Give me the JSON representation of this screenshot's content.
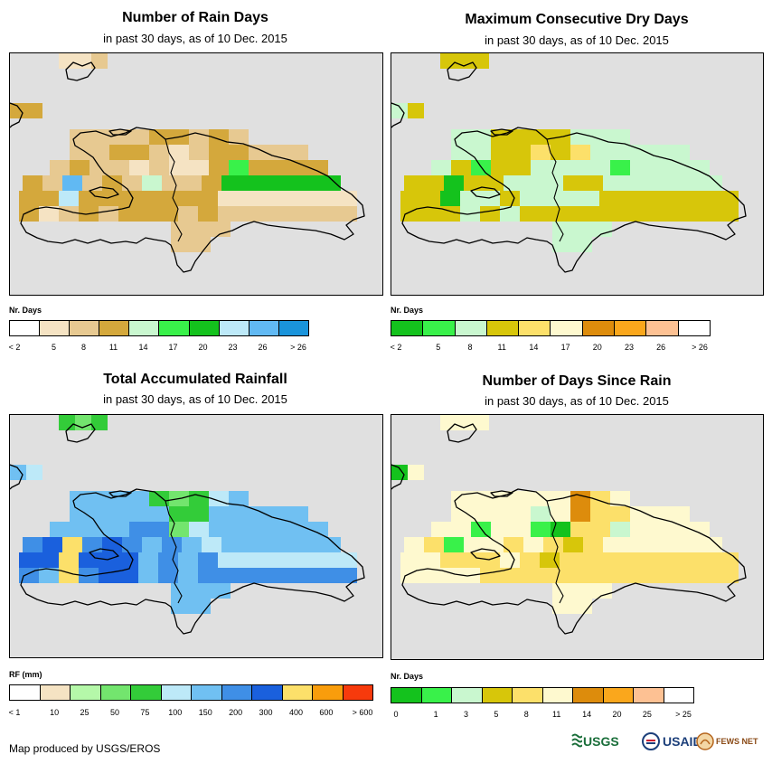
{
  "panels": [
    {
      "title": "Number of Rain Days",
      "subtitle": "in past 30 days, as of 10 Dec. 2015",
      "legend": {
        "title": "Nr. Days",
        "labels": [
          "< 2",
          "5",
          "8",
          "11",
          "14",
          "17",
          "20",
          "23",
          "26",
          "> 26"
        ],
        "colors": [
          "#ffffff",
          "#f5e3c3",
          "#e7c991",
          "#d4a83c",
          "#c9f7cf",
          "#39f14a",
          "#14c21d",
          "#bde9f8",
          "#61b9f3",
          "#1a94db"
        ]
      },
      "grid": {
        "base": "#e7c991",
        "cells": [
          [
            0,
            0,
            "#f5e3c3"
          ],
          [
            1,
            0,
            "#f5e3c3"
          ],
          [
            2,
            0,
            "#e7c991"
          ],
          [
            3,
            0,
            "#f5e3c3"
          ],
          [
            0,
            1,
            "#d4a83c"
          ],
          [
            1,
            1,
            "#d4a83c"
          ],
          [
            2,
            1,
            "#d4a83c"
          ],
          [
            4,
            3,
            "#d4a83c"
          ],
          [
            5,
            3,
            "#d4a83c"
          ],
          [
            6,
            3,
            "#e7c991"
          ],
          [
            7,
            3,
            "#d4a83c"
          ],
          [
            2,
            4,
            "#d4a83c"
          ],
          [
            3,
            4,
            "#d4a83c"
          ],
          [
            5,
            4,
            "#f5e3c3"
          ],
          [
            7,
            4,
            "#d4a83c"
          ],
          [
            8,
            4,
            "#d4a83c"
          ],
          [
            1,
            5,
            "#d4a83c"
          ],
          [
            4,
            5,
            "#f5e3c3"
          ],
          [
            6,
            5,
            "#f5e3c3"
          ],
          [
            7,
            5,
            "#f5e3c3"
          ],
          [
            8,
            5,
            "#d4a83c"
          ],
          [
            9,
            5,
            "#39f14a"
          ],
          [
            10,
            5,
            "#d4a83c"
          ],
          [
            0,
            6,
            "#d4a83c"
          ],
          [
            2,
            6,
            "#61b9f3"
          ],
          [
            4,
            6,
            "#d4a83c"
          ],
          [
            6,
            6,
            "#c9f7cf"
          ],
          [
            8,
            6,
            "#e7c991"
          ],
          [
            9,
            6,
            "#d4a83c"
          ],
          [
            10,
            6,
            "#14c21d"
          ],
          [
            0,
            7,
            "#d4a83c"
          ],
          [
            1,
            7,
            "#d4a83c"
          ],
          [
            2,
            7,
            "#bde9f8"
          ],
          [
            3,
            7,
            "#d4a83c"
          ],
          [
            4,
            7,
            "#d4a83c"
          ],
          [
            5,
            7,
            "#d4a83c"
          ],
          [
            6,
            7,
            "#d4a83c"
          ],
          [
            7,
            7,
            "#d4a83c"
          ],
          [
            8,
            7,
            "#d4a83c"
          ],
          [
            9,
            7,
            "#d4a83c"
          ],
          [
            10,
            7,
            "#f5e3c3"
          ],
          [
            0,
            8,
            "#d4a83c"
          ],
          [
            1,
            8,
            "#f5e3c3"
          ],
          [
            3,
            8,
            "#d4a83c"
          ],
          [
            5,
            8,
            "#d4a83c"
          ],
          [
            6,
            8,
            "#d4a83c"
          ],
          [
            7,
            8,
            "#d4a83c"
          ],
          [
            9,
            8,
            "#d4a83c"
          ],
          [
            5,
            9,
            "#f5e3c3"
          ],
          [
            6,
            9,
            "#f5e3c3"
          ],
          [
            5,
            10,
            "#e7c991"
          ]
        ]
      }
    },
    {
      "title": "Maximum Consecutive Dry Days",
      "subtitle": "in past 30 days, as of 10 Dec. 2015",
      "legend": {
        "title": "Nr. Days",
        "labels": [
          "< 2",
          "5",
          "8",
          "11",
          "14",
          "17",
          "20",
          "23",
          "26",
          "> 26"
        ],
        "colors": [
          "#14c21d",
          "#39f14a",
          "#c9f7cf",
          "#d7c60a",
          "#fce06a",
          "#fef9cf",
          "#dd8c0c",
          "#faa71c",
          "#fdc193",
          "#ffffff"
        ]
      },
      "grid": {
        "base": "#c9f7cf",
        "cells": [
          [
            0,
            0,
            "#d7c60a"
          ],
          [
            1,
            0,
            "#d7c60a"
          ],
          [
            2,
            0,
            "#d7c60a"
          ],
          [
            0,
            1,
            "#c9f7cf"
          ],
          [
            1,
            1,
            "#d7c60a"
          ],
          [
            2,
            3,
            "#d7c60a"
          ],
          [
            3,
            3,
            "#d7c60a"
          ],
          [
            4,
            3,
            "#d7c60a"
          ],
          [
            5,
            3,
            "#d7c60a"
          ],
          [
            2,
            4,
            "#d7c60a"
          ],
          [
            3,
            4,
            "#d7c60a"
          ],
          [
            4,
            4,
            "#fce06a"
          ],
          [
            5,
            4,
            "#d7c60a"
          ],
          [
            6,
            4,
            "#fce06a"
          ],
          [
            1,
            5,
            "#d7c60a"
          ],
          [
            2,
            5,
            "#39f14a"
          ],
          [
            3,
            5,
            "#d7c60a"
          ],
          [
            4,
            5,
            "#d7c60a"
          ],
          [
            9,
            5,
            "#39f14a"
          ],
          [
            0,
            6,
            "#d7c60a"
          ],
          [
            1,
            6,
            "#d7c60a"
          ],
          [
            2,
            6,
            "#14c21d"
          ],
          [
            3,
            6,
            "#d7c60a"
          ],
          [
            4,
            6,
            "#d7c60a"
          ],
          [
            8,
            6,
            "#d7c60a"
          ],
          [
            9,
            6,
            "#d7c60a"
          ],
          [
            0,
            7,
            "#d7c60a"
          ],
          [
            1,
            7,
            "#d7c60a"
          ],
          [
            2,
            7,
            "#14c21d"
          ],
          [
            3,
            7,
            "#c9f7cf"
          ],
          [
            5,
            7,
            "#d7c60a"
          ],
          [
            10,
            7,
            "#d7c60a"
          ],
          [
            0,
            8,
            "#d7c60a"
          ],
          [
            1,
            8,
            "#d7c60a"
          ],
          [
            2,
            8,
            "#d7c60a"
          ],
          [
            4,
            8,
            "#d7c60a"
          ],
          [
            6,
            8,
            "#d7c60a"
          ],
          [
            7,
            8,
            "#d7c60a"
          ],
          [
            8,
            8,
            "#d7c60a"
          ],
          [
            9,
            8,
            "#d7c60a"
          ],
          [
            10,
            8,
            "#d7c60a"
          ],
          [
            5,
            9,
            "#fce06a"
          ],
          [
            5,
            10,
            "#c9f7cf"
          ]
        ]
      }
    },
    {
      "title": "Total Accumulated Rainfall",
      "subtitle": "in past 30 days, as of 10 Dec. 2015",
      "legend": {
        "title": "RF (mm)",
        "labels": [
          "< 1",
          "10",
          "25",
          "50",
          "75",
          "100",
          "150",
          "200",
          "300",
          "400",
          "600",
          "> 600"
        ],
        "colors": [
          "#ffffff",
          "#f5e3c3",
          "#b5f8a9",
          "#73e56e",
          "#33cc39",
          "#bde9f8",
          "#70c0f2",
          "#3f8fe6",
          "#1a60dd",
          "#fce06a",
          "#f99d0c",
          "#f73a0c"
        ]
      },
      "grid": {
        "base": "#70c0f2",
        "cells": [
          [
            0,
            0,
            "#33cc39"
          ],
          [
            1,
            0,
            "#73e56e"
          ],
          [
            2,
            0,
            "#33cc39"
          ],
          [
            0,
            1,
            "#70c0f2"
          ],
          [
            1,
            1,
            "#bde9f8"
          ],
          [
            4,
            3,
            "#33cc39"
          ],
          [
            5,
            3,
            "#73e56e"
          ],
          [
            6,
            3,
            "#33cc39"
          ],
          [
            7,
            3,
            "#bde9f8"
          ],
          [
            2,
            4,
            "#70c0f2"
          ],
          [
            3,
            4,
            "#70c0f2"
          ],
          [
            5,
            4,
            "#33cc39"
          ],
          [
            6,
            4,
            "#33cc39"
          ],
          [
            8,
            4,
            "#70c0f2"
          ],
          [
            1,
            5,
            "#70c0f2"
          ],
          [
            4,
            5,
            "#3f8fe6"
          ],
          [
            5,
            5,
            "#3f8fe6"
          ],
          [
            6,
            5,
            "#73e56e"
          ],
          [
            7,
            5,
            "#bde9f8"
          ],
          [
            8,
            5,
            "#70c0f2"
          ],
          [
            9,
            5,
            "#70c0f2"
          ],
          [
            0,
            6,
            "#3f8fe6"
          ],
          [
            1,
            6,
            "#1a60dd"
          ],
          [
            2,
            6,
            "#fce06a"
          ],
          [
            3,
            6,
            "#3f8fe6"
          ],
          [
            4,
            6,
            "#1a60dd"
          ],
          [
            5,
            6,
            "#3f8fe6"
          ],
          [
            6,
            6,
            "#70c0f2"
          ],
          [
            7,
            6,
            "#3f8fe6"
          ],
          [
            8,
            6,
            "#70c0f2"
          ],
          [
            9,
            6,
            "#bde9f8"
          ],
          [
            0,
            7,
            "#1a60dd"
          ],
          [
            1,
            7,
            "#1a60dd"
          ],
          [
            2,
            7,
            "#fce06a"
          ],
          [
            3,
            7,
            "#1a60dd"
          ],
          [
            4,
            7,
            "#1a60dd"
          ],
          [
            5,
            7,
            "#1a60dd"
          ],
          [
            6,
            7,
            "#70c0f2"
          ],
          [
            7,
            7,
            "#3f8fe6"
          ],
          [
            8,
            7,
            "#70c0f2"
          ],
          [
            9,
            7,
            "#3f8fe6"
          ],
          [
            10,
            7,
            "#bde9f8"
          ],
          [
            0,
            8,
            "#3f8fe6"
          ],
          [
            1,
            8,
            "#70c0f2"
          ],
          [
            2,
            8,
            "#fce06a"
          ],
          [
            3,
            8,
            "#3f8fe6"
          ],
          [
            4,
            8,
            "#1a60dd"
          ],
          [
            5,
            8,
            "#1a60dd"
          ],
          [
            6,
            8,
            "#70c0f2"
          ],
          [
            7,
            8,
            "#3f8fe6"
          ],
          [
            8,
            8,
            "#70c0f2"
          ],
          [
            9,
            8,
            "#3f8fe6"
          ],
          [
            10,
            8,
            "#3f8fe6"
          ],
          [
            5,
            9,
            "#3f8fe6"
          ],
          [
            6,
            9,
            "#3f8fe6"
          ],
          [
            5,
            10,
            "#70c0f2"
          ]
        ]
      }
    },
    {
      "title": "Number of Days Since Rain",
      "subtitle": "in past 30 days, as of 10 Dec. 2015",
      "legend": {
        "title": "Nr. Days",
        "labels": [
          "0",
          "1",
          "3",
          "5",
          "8",
          "11",
          "14",
          "20",
          "25",
          "> 25"
        ],
        "colors": [
          "#14c21d",
          "#39f14a",
          "#c9f7cf",
          "#d7c60a",
          "#fce06a",
          "#fef9cf",
          "#dd8c0c",
          "#faa71c",
          "#fdc193",
          "#ffffff"
        ]
      },
      "grid": {
        "base": "#fef9cf",
        "cells": [
          [
            0,
            0,
            "#fef9cf"
          ],
          [
            1,
            0,
            "#fef9cf"
          ],
          [
            2,
            0,
            "#fef9cf"
          ],
          [
            0,
            1,
            "#14c21d"
          ],
          [
            1,
            1,
            "#fef9cf"
          ],
          [
            6,
            3,
            "#dd8c0c"
          ],
          [
            7,
            3,
            "#fce06a"
          ],
          [
            4,
            4,
            "#c9f7cf"
          ],
          [
            5,
            4,
            "#fef9cf"
          ],
          [
            6,
            4,
            "#dd8c0c"
          ],
          [
            7,
            4,
            "#fce06a"
          ],
          [
            8,
            4,
            "#fce06a"
          ],
          [
            2,
            5,
            "#39f14a"
          ],
          [
            5,
            5,
            "#39f14a"
          ],
          [
            6,
            5,
            "#14c21d"
          ],
          [
            7,
            5,
            "#fce06a"
          ],
          [
            8,
            5,
            "#fce06a"
          ],
          [
            9,
            5,
            "#c9f7cf"
          ],
          [
            1,
            6,
            "#fce06a"
          ],
          [
            2,
            6,
            "#39f14a"
          ],
          [
            5,
            6,
            "#fce06a"
          ],
          [
            7,
            6,
            "#fce06a"
          ],
          [
            8,
            6,
            "#d7c60a"
          ],
          [
            9,
            6,
            "#fce06a"
          ],
          [
            0,
            7,
            "#fef9cf"
          ],
          [
            2,
            7,
            "#fce06a"
          ],
          [
            3,
            7,
            "#fce06a"
          ],
          [
            4,
            7,
            "#fce06a"
          ],
          [
            6,
            7,
            "#fce06a"
          ],
          [
            7,
            7,
            "#d7c60a"
          ],
          [
            8,
            7,
            "#fce06a"
          ],
          [
            9,
            7,
            "#fce06a"
          ],
          [
            10,
            7,
            "#fce06a"
          ],
          [
            0,
            8,
            "#fef9cf"
          ],
          [
            1,
            8,
            "#fef9cf"
          ],
          [
            4,
            8,
            "#fce06a"
          ],
          [
            5,
            8,
            "#fce06a"
          ],
          [
            6,
            8,
            "#fce06a"
          ],
          [
            7,
            8,
            "#fce06a"
          ],
          [
            8,
            8,
            "#fce06a"
          ],
          [
            9,
            8,
            "#fce06a"
          ],
          [
            10,
            8,
            "#fce06a"
          ],
          [
            5,
            9,
            "#fce06a"
          ],
          [
            6,
            9,
            "#fce06a"
          ],
          [
            5,
            10,
            "#fce06a"
          ]
        ]
      }
    }
  ],
  "footer": {
    "credit": "Map produced by USGS/EROS"
  },
  "logos": {
    "usgs": "USGS",
    "usaid": "USAID",
    "fewsnet": "FEWS NET"
  }
}
